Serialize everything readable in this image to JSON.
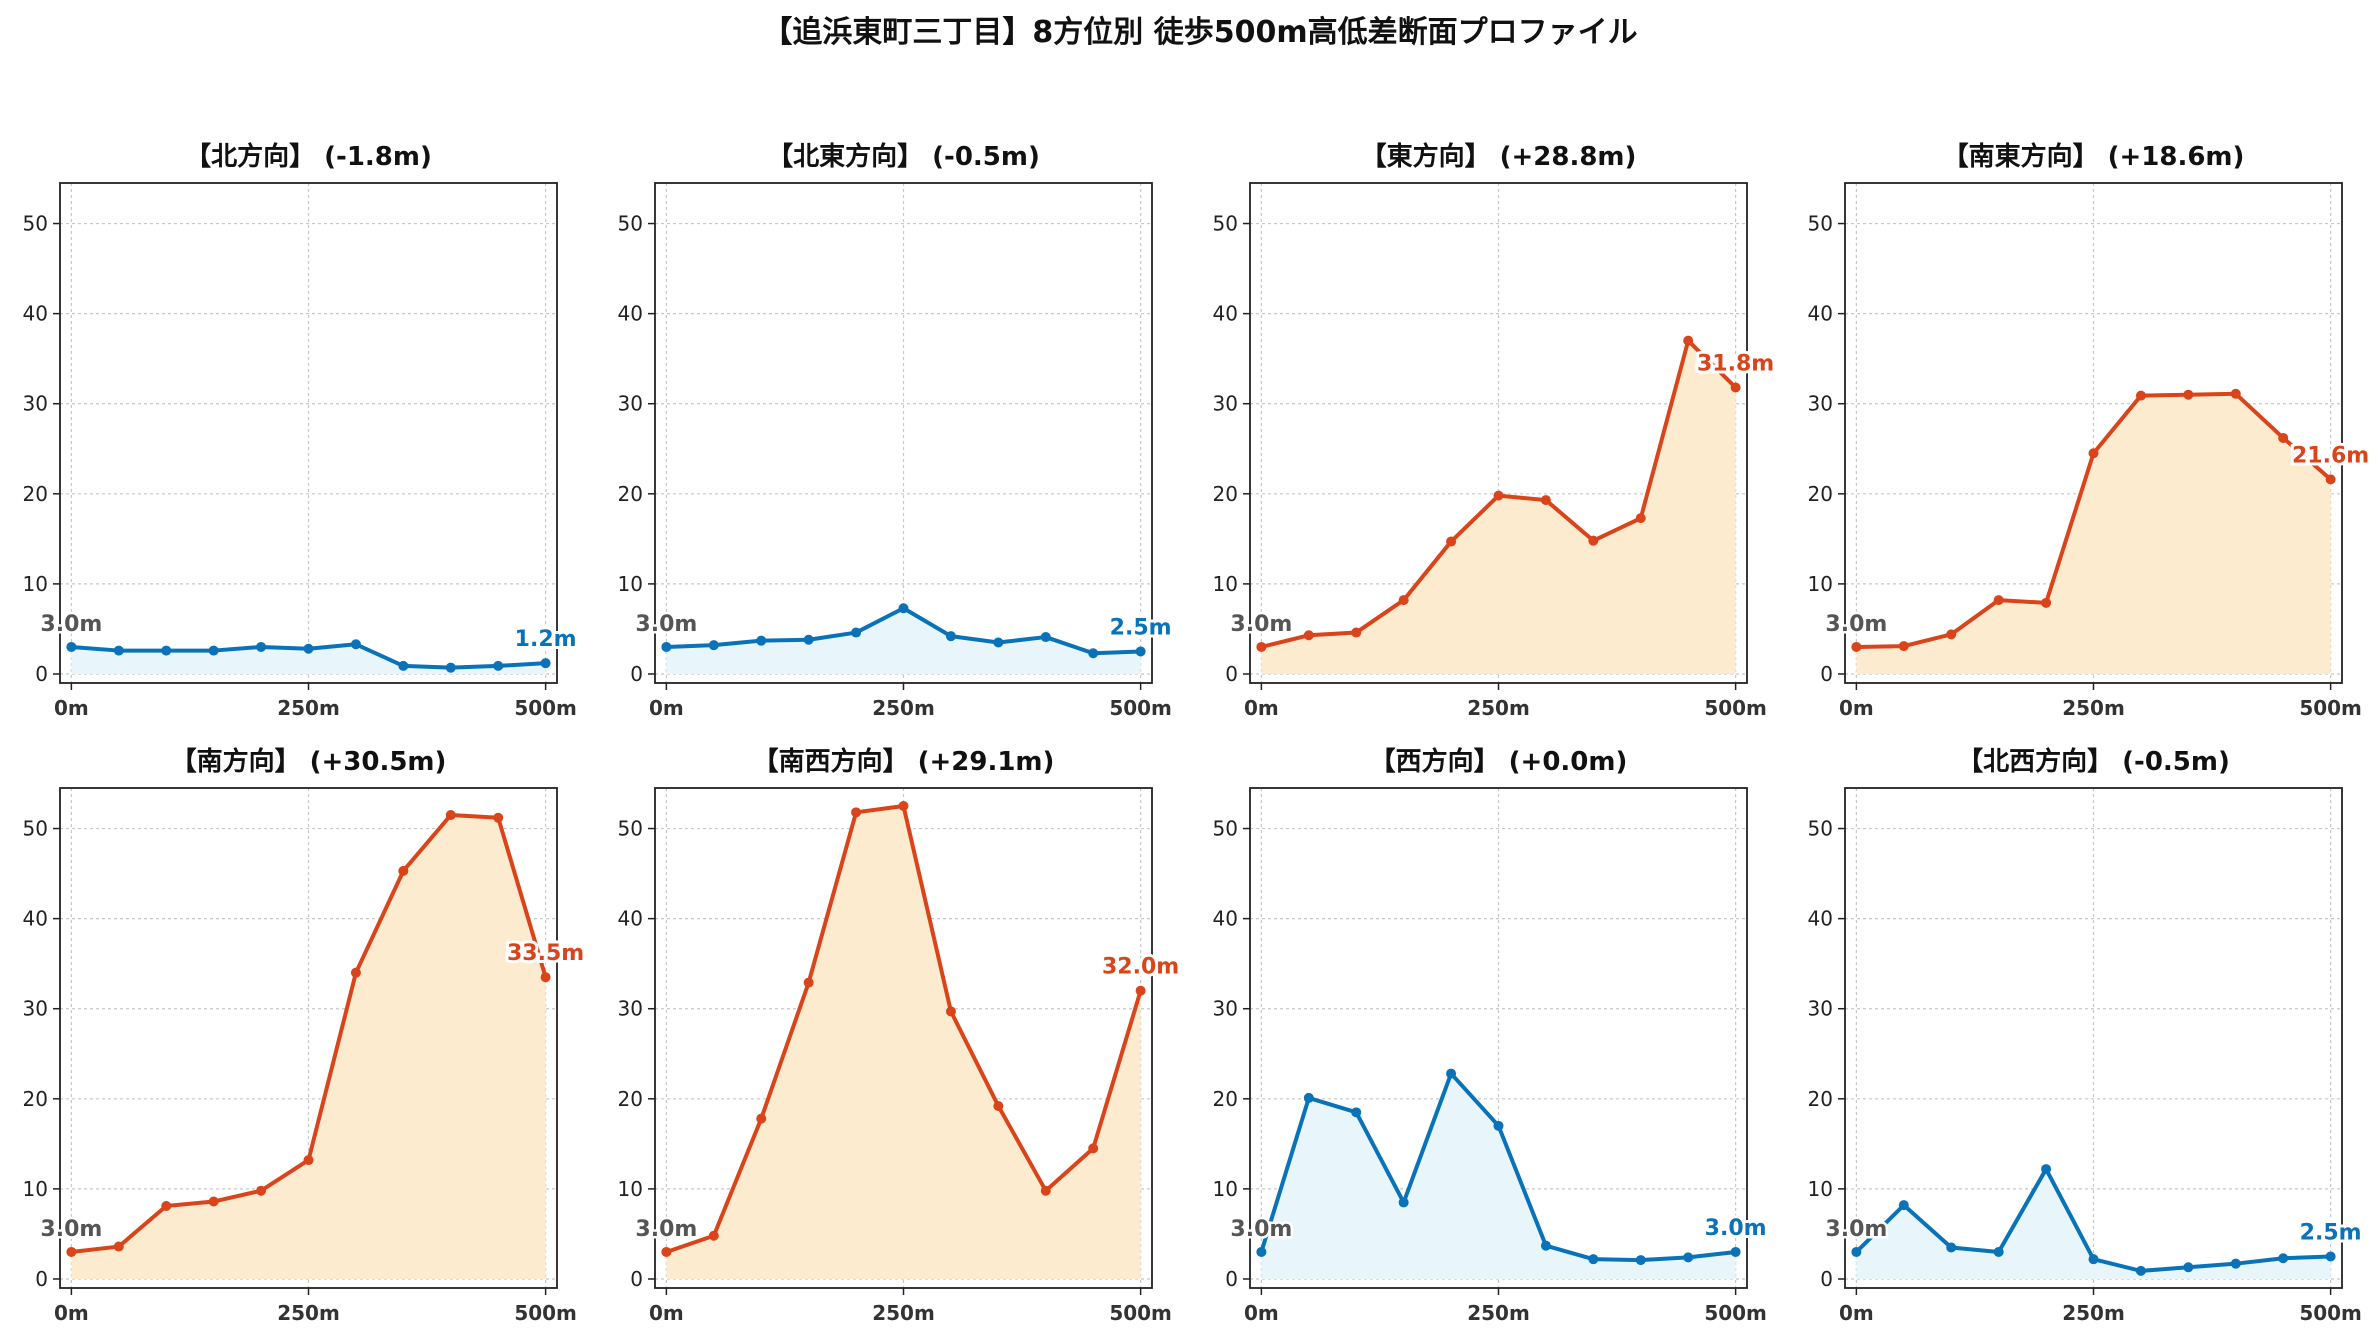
{
  "title": "【追浜東町三丁目】8方位別 徒歩500m高低差断面プロファイル",
  "colors": {
    "down_line": "#1f77b4",
    "down_line_actual": "#0a72b8",
    "down_fill": "#e8f6fb",
    "up_line": "#d9441a",
    "up_fill": "#fdebd0",
    "start_label": "#555555",
    "grid": "#c8c8c8"
  },
  "chart_data": [
    {
      "type": "area",
      "title": "【北方向】 (-1.8m)",
      "trend": "down",
      "x": [
        0,
        50,
        100,
        150,
        200,
        250,
        300,
        350,
        400,
        450,
        500
      ],
      "values": [
        3.0,
        2.6,
        2.6,
        2.6,
        3.0,
        2.8,
        3.3,
        0.9,
        0.7,
        0.9,
        1.2
      ],
      "start_label": "3.0m",
      "end_label": "1.2m",
      "xticks": [
        "0m",
        "250m",
        "500m"
      ],
      "yticks": [
        "0",
        "10",
        "20",
        "30",
        "40",
        "50"
      ],
      "xlim": [
        -12,
        512
      ],
      "ylim": [
        -1,
        54.5
      ],
      "grid": true
    },
    {
      "type": "area",
      "title": "【北東方向】 (-0.5m)",
      "trend": "down",
      "x": [
        0,
        50,
        100,
        150,
        200,
        250,
        300,
        350,
        400,
        450,
        500
      ],
      "values": [
        3.0,
        3.2,
        3.7,
        3.8,
        4.6,
        7.3,
        4.2,
        3.5,
        4.1,
        2.3,
        2.5
      ],
      "start_label": "3.0m",
      "end_label": "2.5m",
      "xticks": [
        "0m",
        "250m",
        "500m"
      ],
      "yticks": [
        "0",
        "10",
        "20",
        "30",
        "40",
        "50"
      ],
      "xlim": [
        -12,
        512
      ],
      "ylim": [
        -1,
        54.5
      ],
      "grid": true
    },
    {
      "type": "area",
      "title": "【東方向】 (+28.8m)",
      "trend": "up",
      "x": [
        0,
        50,
        100,
        150,
        200,
        250,
        300,
        350,
        400,
        450,
        500
      ],
      "values": [
        3.0,
        4.3,
        4.6,
        8.2,
        14.7,
        19.8,
        19.3,
        14.8,
        17.3,
        37.0,
        31.8
      ],
      "start_label": "3.0m",
      "end_label": "31.8m",
      "xticks": [
        "0m",
        "250m",
        "500m"
      ],
      "yticks": [
        "0",
        "10",
        "20",
        "30",
        "40",
        "50"
      ],
      "xlim": [
        -12,
        512
      ],
      "ylim": [
        -1,
        54.5
      ],
      "grid": true
    },
    {
      "type": "area",
      "title": "【南東方向】 (+18.6m)",
      "trend": "up",
      "x": [
        0,
        50,
        100,
        150,
        200,
        250,
        300,
        350,
        400,
        450,
        500
      ],
      "values": [
        3.0,
        3.1,
        4.4,
        8.2,
        7.9,
        24.5,
        30.9,
        31.0,
        31.1,
        26.2,
        21.6
      ],
      "start_label": "3.0m",
      "end_label": "21.6m",
      "xticks": [
        "0m",
        "250m",
        "500m"
      ],
      "yticks": [
        "0",
        "10",
        "20",
        "30",
        "40",
        "50"
      ],
      "xlim": [
        -12,
        512
      ],
      "ylim": [
        -1,
        54.5
      ],
      "grid": true
    },
    {
      "type": "area",
      "title": "【南方向】 (+30.5m)",
      "trend": "up",
      "x": [
        0,
        50,
        100,
        150,
        200,
        250,
        300,
        350,
        400,
        450,
        500
      ],
      "values": [
        3.0,
        3.6,
        8.1,
        8.6,
        9.8,
        13.2,
        34.0,
        45.3,
        51.5,
        51.2,
        33.5
      ],
      "start_label": "3.0m",
      "end_label": "33.5m",
      "xticks": [
        "0m",
        "250m",
        "500m"
      ],
      "yticks": [
        "0",
        "10",
        "20",
        "30",
        "40",
        "50"
      ],
      "xlim": [
        -12,
        512
      ],
      "ylim": [
        -1,
        54.5
      ],
      "grid": true
    },
    {
      "type": "area",
      "title": "【南西方向】 (+29.1m)",
      "trend": "up",
      "x": [
        0,
        50,
        100,
        150,
        200,
        250,
        300,
        350,
        400,
        450,
        500
      ],
      "values": [
        3.0,
        4.8,
        17.8,
        32.9,
        51.8,
        52.5,
        29.7,
        19.2,
        9.8,
        14.5,
        32.0
      ],
      "start_label": "3.0m",
      "end_label": "32.0m",
      "xticks": [
        "0m",
        "250m",
        "500m"
      ],
      "yticks": [
        "0",
        "10",
        "20",
        "30",
        "40",
        "50"
      ],
      "xlim": [
        -12,
        512
      ],
      "ylim": [
        -1,
        54.5
      ],
      "grid": true
    },
    {
      "type": "area",
      "title": "【西方向】 (+0.0m)",
      "trend": "down",
      "x": [
        0,
        50,
        100,
        150,
        200,
        250,
        300,
        350,
        400,
        450,
        500
      ],
      "values": [
        3.0,
        20.1,
        18.5,
        8.5,
        22.8,
        17.0,
        3.7,
        2.2,
        2.1,
        2.4,
        3.0
      ],
      "start_label": "3.0m",
      "end_label": "3.0m",
      "xticks": [
        "0m",
        "250m",
        "500m"
      ],
      "yticks": [
        "0",
        "10",
        "20",
        "30",
        "40",
        "50"
      ],
      "xlim": [
        -12,
        512
      ],
      "ylim": [
        -1,
        54.5
      ],
      "grid": true
    },
    {
      "type": "area",
      "title": "【北西方向】 (-0.5m)",
      "trend": "down",
      "x": [
        0,
        50,
        100,
        150,
        200,
        250,
        300,
        350,
        400,
        450,
        500
      ],
      "values": [
        3.0,
        8.2,
        3.5,
        3.0,
        12.2,
        2.2,
        0.9,
        1.3,
        1.7,
        2.3,
        2.5
      ],
      "start_label": "3.0m",
      "end_label": "2.5m",
      "xticks": [
        "0m",
        "250m",
        "500m"
      ],
      "yticks": [
        "0",
        "10",
        "20",
        "30",
        "40",
        "50"
      ],
      "xlim": [
        -12,
        512
      ],
      "ylim": [
        -1,
        54.5
      ],
      "grid": true
    }
  ]
}
